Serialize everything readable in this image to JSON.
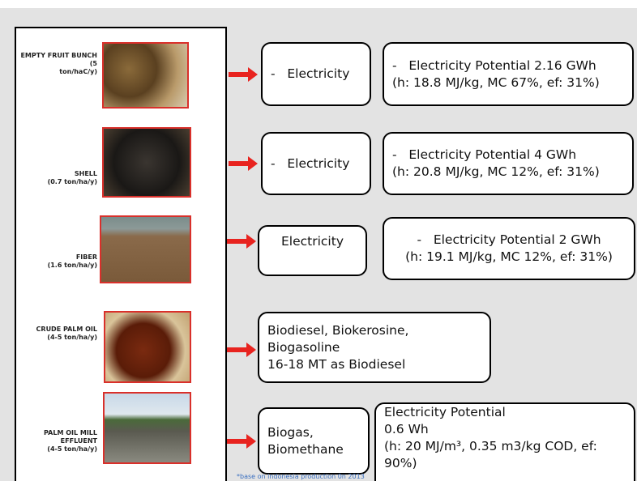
{
  "rows": [
    {
      "label": "EMPTY FRUIT BUNCH",
      "amount": "(5 ton/haC/y)",
      "product": [
        "-   Electricity"
      ],
      "potential": [
        "-   Electricity Potential 2.16 GWh",
        "(h: 18.8 MJ/kg, MC 67%, ef: 31%)"
      ]
    },
    {
      "label": "SHELL",
      "amount": "(0.7 ton/ha/y)",
      "product": [
        "-   Electricity"
      ],
      "potential": [
        "-   Electricity Potential 4 GWh",
        "(h: 20.8 MJ/kg, MC 12%, ef: 31%)"
      ]
    },
    {
      "label": "FIBER",
      "amount": "(1.6 ton/ha/y)",
      "product": [
        "Electricity"
      ],
      "potential": [
        "-   Electricity Potential 2 GWh",
        "(h: 19.1 MJ/kg, MC 12%, ef: 31%)"
      ]
    },
    {
      "label": "CRUDE PALM OIL",
      "amount": "(4-5 ton/ha/y)",
      "product": [
        "Biodiesel, Biokerosine,",
        "Biogasoline",
        "16-18 MT as Biodiesel"
      ]
    },
    {
      "label": "PALM OIL MILL EFFLUENT",
      "amount": "(4-5 ton/ha/y)",
      "product": [
        "Biogas,",
        "Biomethane"
      ],
      "potential": [
        "Electricity Potential",
        "0.6 Wh",
        "(h: 20 MJ/m³, 0.35 m3/kg COD, ef: 90%)"
      ]
    }
  ],
  "footnote": "*base on indonesia production 0n 2013"
}
